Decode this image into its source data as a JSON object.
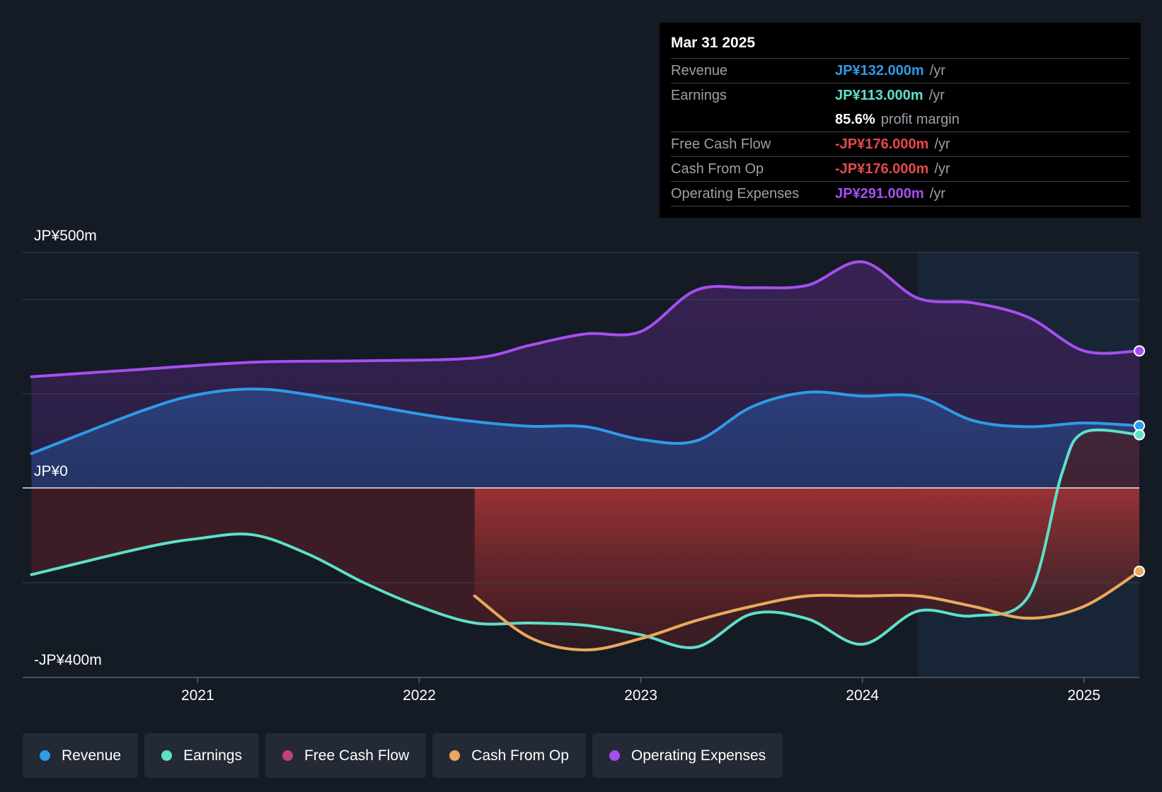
{
  "tooltip": {
    "date": "Mar 31 2025",
    "rows": [
      {
        "label": "Revenue",
        "value": "JP¥132.000m",
        "unit": "/yr",
        "color": "#2f9ae8"
      },
      {
        "label": "Earnings",
        "value": "JP¥113.000m",
        "unit": "/yr",
        "color": "#5de0c9"
      },
      {
        "label": "",
        "value": "85.6%",
        "unit": "profit margin",
        "color": "#ffffff"
      },
      {
        "label": "Free Cash Flow",
        "value": "-JP¥176.000m",
        "unit": "/yr",
        "color": "#e5484d"
      },
      {
        "label": "Cash From Op",
        "value": "-JP¥176.000m",
        "unit": "/yr",
        "color": "#e5484d"
      },
      {
        "label": "Operating Expenses",
        "value": "JP¥291.000m",
        "unit": "/yr",
        "color": "#a64ff0"
      }
    ]
  },
  "legend": [
    {
      "label": "Revenue",
      "color": "#2f9ae8"
    },
    {
      "label": "Earnings",
      "color": "#5de0c9"
    },
    {
      "label": "Free Cash Flow",
      "color": "#c2417a"
    },
    {
      "label": "Cash From Op",
      "color": "#e8a95c"
    },
    {
      "label": "Operating Expenses",
      "color": "#a64ff0"
    }
  ],
  "chart_data": {
    "type": "area",
    "title": "",
    "xlabel": "",
    "ylabel": "",
    "ylim": [
      -400,
      500
    ],
    "y_tick_labels": [
      {
        "value": 500,
        "label": "JP¥500m"
      },
      {
        "value": 0,
        "label": "JP¥0"
      },
      {
        "value": -400,
        "label": "-JP¥400m"
      }
    ],
    "gridline_values": [
      500,
      400,
      200,
      0,
      -200,
      -400
    ],
    "xlim": [
      2020.21,
      2025.25
    ],
    "x_ticks": [
      {
        "value": 2021,
        "label": "2021"
      },
      {
        "value": 2022,
        "label": "2022"
      },
      {
        "value": 2023,
        "label": "2023"
      },
      {
        "value": 2024,
        "label": "2024"
      },
      {
        "value": 2025,
        "label": "2025"
      }
    ],
    "past_region_start": 2024.25,
    "grid": true,
    "legend_position": "bottom",
    "series": [
      {
        "name": "Operating Expenses",
        "color": "#a64ff0",
        "x": [
          2020.25,
          2020.75,
          2021.25,
          2021.75,
          2022.25,
          2022.5,
          2022.75,
          2023.0,
          2023.25,
          2023.5,
          2023.75,
          2024.0,
          2024.25,
          2024.5,
          2024.75,
          2025.0,
          2025.25
        ],
        "values": [
          236,
          252,
          267,
          270,
          276,
          303,
          327,
          332,
          420,
          425,
          430,
          480,
          403,
          393,
          362,
          291,
          291
        ]
      },
      {
        "name": "Revenue",
        "color": "#2f9ae8",
        "x": [
          2020.25,
          2020.75,
          2021.0,
          2021.25,
          2021.5,
          2022.0,
          2022.25,
          2022.5,
          2022.75,
          2023.0,
          2023.25,
          2023.5,
          2023.75,
          2024.0,
          2024.25,
          2024.5,
          2024.75,
          2025.0,
          2025.25
        ],
        "values": [
          73,
          164,
          198,
          210,
          198,
          157,
          141,
          131,
          130,
          103,
          100,
          172,
          203,
          195,
          194,
          143,
          130,
          138,
          132
        ]
      },
      {
        "name": "Earnings",
        "color": "#5de0c9",
        "x": [
          2020.25,
          2020.75,
          2021.0,
          2021.25,
          2021.5,
          2021.75,
          2022.0,
          2022.25,
          2022.5,
          2022.75,
          2023.0,
          2023.25,
          2023.5,
          2023.75,
          2024.0,
          2024.25,
          2024.5,
          2024.75,
          2024.9,
          2025.0,
          2025.25
        ],
        "values": [
          -183,
          -127,
          -107,
          -99,
          -140,
          -200,
          -250,
          -285,
          -285,
          -290,
          -310,
          -336,
          -266,
          -276,
          -330,
          -260,
          -270,
          -228,
          30,
          118,
          113
        ]
      },
      {
        "name": "Free Cash Flow",
        "color": "#c2417a",
        "x": [
          2022.25,
          2022.5,
          2022.75,
          2023.0,
          2023.25,
          2023.5,
          2023.75,
          2024.0,
          2024.25,
          2024.5,
          2024.75,
          2025.0,
          2025.25
        ],
        "values": [
          -228,
          -316,
          -342,
          -318,
          -280,
          -250,
          -228,
          -228,
          -228,
          -250,
          -275,
          -250,
          -176
        ]
      },
      {
        "name": "Cash From Op",
        "color": "#e8a95c",
        "x": [
          2022.25,
          2022.5,
          2022.75,
          2023.0,
          2023.25,
          2023.5,
          2023.75,
          2024.0,
          2024.25,
          2024.5,
          2024.75,
          2025.0,
          2025.25
        ],
        "values": [
          -228,
          -316,
          -342,
          -318,
          -280,
          -250,
          -228,
          -228,
          -228,
          -250,
          -275,
          -250,
          -176
        ]
      }
    ]
  }
}
